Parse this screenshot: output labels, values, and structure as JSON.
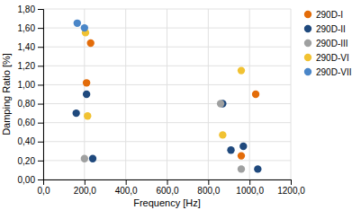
{
  "chart_data": {
    "type": "scatter",
    "xlabel": "Frequency [Hz]",
    "ylabel": "Damping Ratio [%]",
    "series": [
      {
        "name": "290D-I",
        "color": "#E36C09",
        "x": [
          210,
          230,
          960,
          1030
        ],
        "values": [
          1.02,
          1.44,
          0.25,
          0.9
        ]
      },
      {
        "name": "290D-II",
        "color": "#1F497D",
        "x": [
          160,
          210,
          240,
          870,
          910,
          970,
          1040
        ],
        "values": [
          0.7,
          0.9,
          0.22,
          0.8,
          0.31,
          0.35,
          0.11
        ]
      },
      {
        "name": "290D-III",
        "color": "#9FA0A0",
        "x": [
          200,
          860,
          960
        ],
        "values": [
          0.22,
          0.8,
          0.11
        ]
      },
      {
        "name": "290D-VI",
        "color": "#F1C232",
        "x": [
          205,
          215,
          870,
          960
        ],
        "values": [
          1.55,
          0.67,
          0.47,
          1.15
        ]
      },
      {
        "name": "290D-VII",
        "color": "#4A86C8",
        "x": [
          165,
          200
        ],
        "values": [
          1.65,
          1.6
        ]
      }
    ],
    "xlim": [
      0,
      1200
    ],
    "ylim": [
      0.0,
      1.8
    ],
    "xticks": [
      {
        "value": 0,
        "label": "0,0"
      },
      {
        "value": 200,
        "label": "200,0"
      },
      {
        "value": 400,
        "label": "400,0"
      },
      {
        "value": 600,
        "label": "600,0"
      },
      {
        "value": 800,
        "label": "800,0"
      },
      {
        "value": 1000,
        "label": "1000,0"
      },
      {
        "value": 1200,
        "label": "1200,0"
      }
    ],
    "yticks": [
      {
        "value": 0.0,
        "label": "0,00"
      },
      {
        "value": 0.2,
        "label": "0,20"
      },
      {
        "value": 0.4,
        "label": "0,40"
      },
      {
        "value": 0.6,
        "label": "0,60"
      },
      {
        "value": 0.8,
        "label": "0,80"
      },
      {
        "value": 1.0,
        "label": "1,00"
      },
      {
        "value": 1.2,
        "label": "1,20"
      },
      {
        "value": 1.4,
        "label": "1,40"
      },
      {
        "value": 1.6,
        "label": "1,60"
      },
      {
        "value": 1.8,
        "label": "1,80"
      }
    ],
    "grid": true,
    "legend": "right",
    "marker": "circle"
  }
}
